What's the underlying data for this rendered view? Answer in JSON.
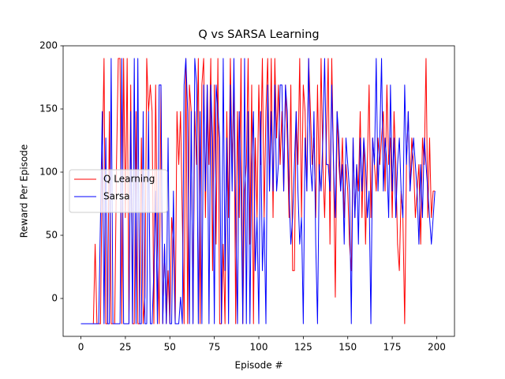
{
  "chart_data": {
    "type": "line",
    "title": "Q vs SARSA Learning",
    "xlabel": "Episode #",
    "ylabel": "Reward Per Episode",
    "x": [
      0,
      1,
      2,
      3,
      4,
      5,
      6,
      7,
      8,
      9,
      10,
      11,
      12,
      13,
      14,
      15,
      16,
      17,
      18,
      19,
      20,
      21,
      22,
      23,
      24,
      25,
      26,
      27,
      28,
      29,
      30,
      31,
      32,
      33,
      34,
      35,
      36,
      37,
      38,
      39,
      40,
      41,
      42,
      43,
      44,
      45,
      46,
      47,
      48,
      49,
      50,
      51,
      52,
      53,
      54,
      55,
      56,
      57,
      58,
      59,
      60,
      61,
      62,
      63,
      64,
      65,
      66,
      67,
      68,
      69,
      70,
      71,
      72,
      73,
      74,
      75,
      76,
      77,
      78,
      79,
      80,
      81,
      82,
      83,
      84,
      85,
      86,
      87,
      88,
      89,
      90,
      91,
      92,
      93,
      94,
      95,
      96,
      97,
      98,
      99,
      100,
      101,
      102,
      103,
      104,
      105,
      106,
      107,
      108,
      109,
      110,
      111,
      112,
      113,
      114,
      115,
      116,
      117,
      118,
      119,
      120,
      121,
      122,
      123,
      124,
      125,
      126,
      127,
      128,
      129,
      130,
      131,
      132,
      133,
      134,
      135,
      136,
      137,
      138,
      139,
      140,
      141,
      142,
      143,
      144,
      145,
      146,
      147,
      148,
      149,
      150,
      151,
      152,
      153,
      154,
      155,
      156,
      157,
      158,
      159,
      160,
      161,
      162,
      163,
      164,
      165,
      166,
      167,
      168,
      169,
      170,
      171,
      172,
      173,
      174,
      175,
      176,
      177,
      178,
      179,
      180,
      181,
      182,
      183,
      184,
      185,
      186,
      187,
      188,
      189,
      190,
      191,
      192,
      193,
      194,
      195,
      196,
      197,
      198,
      199
    ],
    "series": [
      {
        "name": "Q Learning",
        "color": "#ff0000",
        "values": [
          -20,
          -20,
          -20,
          -20,
          -20,
          -20,
          -20,
          -20,
          43,
          -20,
          -20,
          -20,
          106,
          190,
          -20,
          -20,
          148,
          -20,
          -20,
          -20,
          106,
          190,
          190,
          -20,
          190,
          64,
          190,
          -20,
          169,
          -20,
          -20,
          148,
          -20,
          -20,
          127,
          -20,
          1,
          190,
          148,
          169,
          148,
          -20,
          169,
          43,
          -20,
          169,
          -20,
          43,
          -20,
          22,
          -20,
          64,
          43,
          -20,
          148,
          106,
          148,
          64,
          -20,
          190,
          -20,
          169,
          148,
          -20,
          148,
          106,
          190,
          -20,
          169,
          190,
          64,
          169,
          106,
          190,
          22,
          169,
          43,
          190,
          -20,
          -20,
          43,
          -20,
          148,
          64,
          190,
          106,
          169,
          -20,
          148,
          64,
          190,
          -20,
          85,
          106,
          190,
          43,
          169,
          -20,
          127,
          64,
          169,
          106,
          190,
          64,
          148,
          190,
          85,
          190,
          64,
          190,
          127,
          169,
          106,
          148,
          85,
          169,
          127,
          64,
          169,
          22,
          22,
          148,
          106,
          190,
          64,
          169,
          148,
          85,
          190,
          148,
          106,
          127,
          64,
          169,
          85,
          190,
          106,
          64,
          127,
          190,
          43,
          190,
          106,
          1,
          148,
          106,
          85,
          127,
          64,
          106,
          85,
          43,
          22,
          127,
          64,
          106,
          85,
          148,
          64,
          127,
          43,
          106,
          169,
          64,
          127,
          106,
          85,
          127,
          106,
          127,
          148,
          85,
          169,
          106,
          127,
          64,
          148,
          106,
          43,
          22,
          85,
          64,
          -20,
          106,
          148,
          85,
          127,
          106,
          64,
          85,
          106,
          43,
          127,
          106,
          190,
          64,
          127,
          64,
          85,
          85
        ]
      },
      {
        "name": "Sarsa",
        "color": "#0000ff",
        "values": [
          -20,
          -20,
          -20,
          -20,
          -20,
          -20,
          -20,
          -20,
          -20,
          -20,
          -20,
          64,
          148,
          -20,
          127,
          -20,
          -20,
          190,
          -20,
          -20,
          -20,
          -20,
          -20,
          190,
          -20,
          -20,
          -20,
          -20,
          148,
          -20,
          190,
          -20,
          190,
          -20,
          -20,
          148,
          -20,
          -20,
          148,
          -20,
          -20,
          22,
          85,
          -20,
          169,
          169,
          -20,
          43,
          -20,
          127,
          -20,
          -20,
          85,
          -20,
          -20,
          -20,
          1,
          -20,
          169,
          190,
          148,
          -20,
          148,
          -20,
          190,
          169,
          -20,
          148,
          -20,
          169,
          85,
          169,
          -20,
          169,
          127,
          -20,
          169,
          148,
          127,
          -20,
          190,
          22,
          127,
          -20,
          169,
          85,
          190,
          64,
          -20,
          148,
          85,
          -20,
          190,
          -20,
          148,
          -20,
          106,
          148,
          22,
          64,
          -20,
          148,
          22,
          64,
          -20,
          169,
          85,
          148,
          85,
          169,
          85,
          106,
          169,
          169,
          85,
          169,
          148,
          85,
          43,
          64,
          106,
          148,
          85,
          43,
          64,
          -20,
          127,
          85,
          190,
          106,
          85,
          148,
          43,
          -20,
          106,
          85,
          127,
          190,
          106,
          106,
          85,
          169,
          106,
          64,
          148,
          127,
          85,
          106,
          43,
          127,
          106,
          85,
          -20,
          127,
          64,
          106,
          43,
          127,
          85,
          127,
          106,
          64,
          85,
          -20,
          127,
          106,
          190,
          85,
          127,
          190,
          85,
          127,
          106,
          64,
          169,
          85,
          127,
          64,
          106,
          127,
          85,
          64,
          169,
          106,
          148,
          85,
          106,
          127,
          106,
          85,
          43,
          106,
          64,
          127,
          106,
          85,
          64,
          43,
          64,
          85
        ]
      }
    ],
    "xlim": [
      -10,
      210
    ],
    "ylim": [
      -30,
      200
    ],
    "xticks": [
      0,
      25,
      50,
      75,
      100,
      125,
      150,
      175,
      200
    ],
    "yticks": [
      0,
      50,
      100,
      150,
      200
    ],
    "legend": "center left",
    "grid": false
  }
}
